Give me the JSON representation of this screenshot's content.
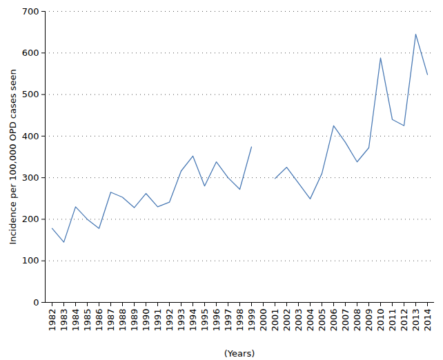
{
  "chart_data": {
    "type": "line",
    "xlabel": "(Years)",
    "ylabel": "Incidence per 100,000 OPD cases seen",
    "categories": [
      "1982",
      "1983",
      "1984",
      "1985",
      "1986",
      "1987",
      "1988",
      "1989",
      "1990",
      "1991",
      "1992",
      "1993",
      "1994",
      "1995",
      "1996",
      "1997",
      "1998",
      "1999",
      "2000",
      "2001",
      "2002",
      "2003",
      "2004",
      "2005",
      "2006",
      "2007",
      "2008",
      "2009",
      "2010",
      "2011",
      "2012",
      "2013",
      "2014"
    ],
    "values": [
      178,
      145,
      230,
      200,
      178,
      265,
      253,
      228,
      262,
      230,
      241,
      316,
      352,
      280,
      338,
      300,
      272,
      374,
      null,
      298,
      325,
      287,
      249,
      310,
      425,
      385,
      338,
      372,
      588,
      440,
      425,
      645,
      548
    ],
    "color": "#4a7ab5",
    "ylim": [
      0,
      700
    ],
    "yticks": [
      0,
      100,
      200,
      300,
      400,
      500,
      600,
      700
    ],
    "grid": true
  }
}
